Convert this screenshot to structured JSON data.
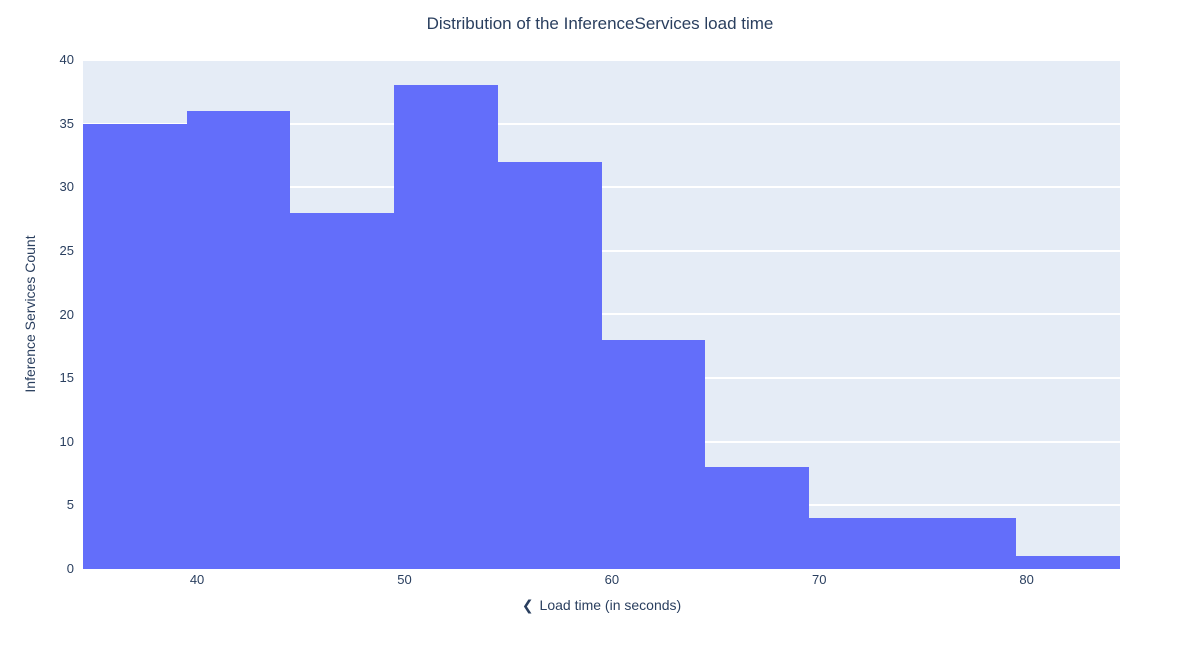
{
  "chart_data": {
    "type": "bar",
    "subtype": "histogram",
    "title": "Distribution of the InferenceServices load time",
    "xlabel": "Load time (in seconds)",
    "ylabel": "Inference Services Count",
    "bin_edges": [
      34.5,
      39.5,
      44.5,
      49.5,
      54.5,
      59.5,
      64.5,
      69.5,
      74.5,
      79.5,
      84.5
    ],
    "values": [
      35,
      36,
      28,
      38,
      32,
      18,
      8,
      4,
      4,
      1
    ],
    "xlim": [
      34.5,
      84.5
    ],
    "ylim": [
      0,
      40
    ],
    "x_ticks": [
      40,
      50,
      60,
      70,
      80
    ],
    "y_ticks": [
      0,
      5,
      10,
      15,
      20,
      25,
      30,
      35,
      40
    ],
    "grid": true,
    "legend": "none",
    "colors": {
      "bar": "#636efa",
      "plot_background": "#e5ecf6",
      "gridline": "#ffffff",
      "text": "#2a3f5f",
      "outer_background": "#ffffff"
    }
  },
  "x_axis": {
    "icon_glyph": "❮"
  }
}
